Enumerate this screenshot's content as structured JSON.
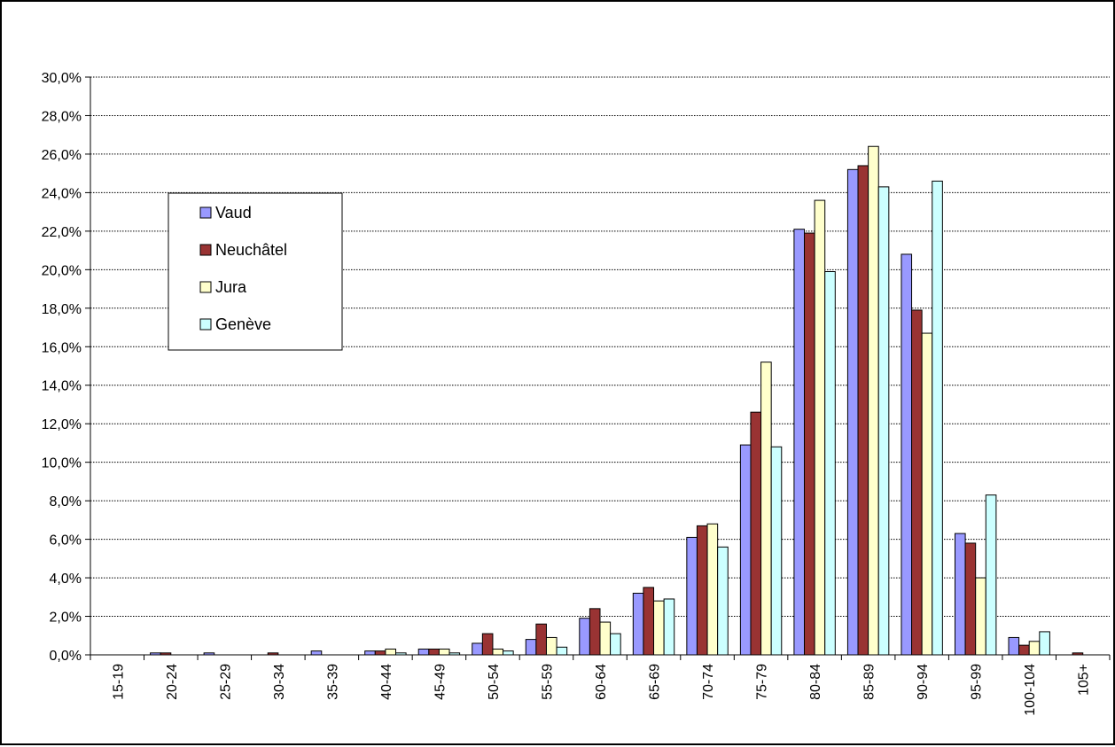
{
  "chart_data": {
    "type": "bar",
    "title": "",
    "xlabel": "",
    "ylabel": "",
    "categories": [
      "15-19",
      "20-24",
      "25-29",
      "30-34",
      "35-39",
      "40-44",
      "45-49",
      "50-54",
      "55-59",
      "60-64",
      "65-69",
      "70-74",
      "75-79",
      "80-84",
      "85-89",
      "90-94",
      "95-99",
      "100-104",
      "105+"
    ],
    "series": [
      {
        "name": "Vaud",
        "color": "#9999ff",
        "values": [
          0.0,
          0.1,
          0.1,
          0.0,
          0.2,
          0.2,
          0.3,
          0.6,
          0.8,
          1.9,
          3.2,
          6.1,
          10.9,
          22.1,
          25.2,
          20.8,
          6.3,
          0.9,
          0.0
        ]
      },
      {
        "name": "Neuchâtel",
        "color": "#993333",
        "values": [
          0.0,
          0.1,
          0.0,
          0.1,
          0.0,
          0.2,
          0.3,
          1.1,
          1.6,
          2.4,
          3.5,
          6.7,
          12.6,
          21.9,
          25.4,
          17.9,
          5.8,
          0.5,
          0.1
        ]
      },
      {
        "name": "Jura",
        "color": "#ffffcc",
        "values": [
          0.0,
          0.0,
          0.0,
          0.0,
          0.0,
          0.3,
          0.3,
          0.3,
          0.9,
          1.7,
          2.8,
          6.8,
          15.2,
          23.6,
          26.4,
          16.7,
          4.0,
          0.7,
          0.0
        ]
      },
      {
        "name": "Genève",
        "color": "#ccffff",
        "values": [
          0.0,
          0.0,
          0.0,
          0.0,
          0.0,
          0.1,
          0.1,
          0.2,
          0.4,
          1.1,
          2.9,
          5.6,
          10.8,
          19.9,
          24.3,
          24.6,
          8.3,
          1.2,
          0.0
        ]
      }
    ],
    "ylim": [
      0,
      30
    ],
    "yticks": [
      "0,0%",
      "2,0%",
      "4,0%",
      "6,0%",
      "8,0%",
      "10,0%",
      "12,0%",
      "14,0%",
      "16,0%",
      "18,0%",
      "20,0%",
      "22,0%",
      "24,0%",
      "26,0%",
      "28,0%",
      "30,0%"
    ],
    "grid": true,
    "legend_position": "left"
  }
}
